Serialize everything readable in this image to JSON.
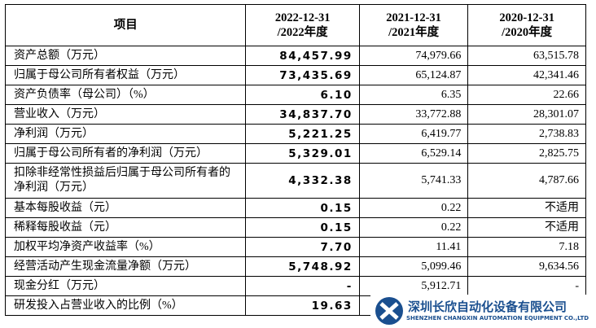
{
  "table": {
    "header": [
      "项目",
      "2022-12-31\n/2022年度",
      "2021-12-31\n/2021年度",
      "2020-12-31\n/2020年度"
    ],
    "rows": [
      [
        "资产总额（万元）",
        "84,457.99",
        "74,979.66",
        "63,515.78"
      ],
      [
        "归属于母公司所有者权益（万元）",
        "73,435.69",
        "65,124.87",
        "42,341.46"
      ],
      [
        "资产负债率（母公司）（%）",
        "6.10",
        "6.35",
        "22.66"
      ],
      [
        "营业收入（万元）",
        "34,837.70",
        "33,772.88",
        "28,301.07"
      ],
      [
        "净利润（万元）",
        "5,221.25",
        "6,419.77",
        "2,738.83"
      ],
      [
        "归属于母公司所有者的净利润（万元）",
        "5,329.01",
        "6,529.14",
        "2,825.75"
      ],
      [
        "扣除非经常性损益后归属于母公司所有者的净利润（万元）",
        "4,332.38",
        "5,741.33",
        "4,787.66"
      ],
      [
        "基本每股收益（元）",
        "0.15",
        "0.22",
        "不适用"
      ],
      [
        "稀释每股收益（元）",
        "0.15",
        "0.22",
        "不适用"
      ],
      [
        "加权平均净资产收益率（%）",
        "7.70",
        "11.41",
        "7.18"
      ],
      [
        "经营活动产生现金流量净额（万元）",
        "5,748.92",
        "5,099.46",
        "9,634.56"
      ],
      [
        "现金分红（万元）",
        "-",
        "5,912.71",
        "-"
      ],
      [
        "研发投入占营业收入的比例（%）",
        "19.63"
      ]
    ]
  },
  "watermark": {
    "name": "深圳长欣自动化设备有限公司",
    "english": "SHENZHEN CHANGXIN AUTOMATION EQUIPMENT CO.,LTD"
  }
}
